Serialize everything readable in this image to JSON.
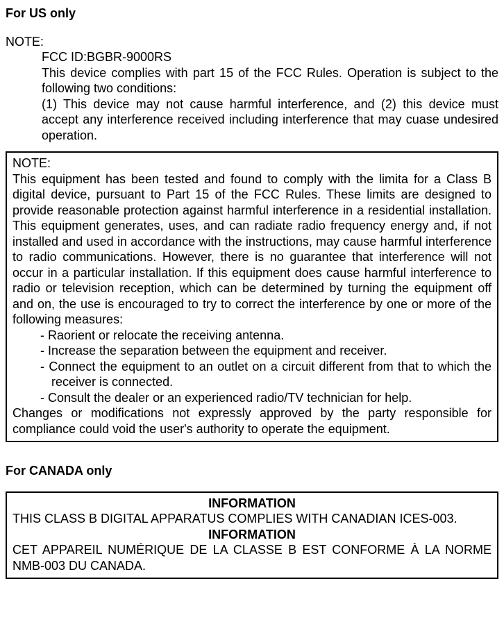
{
  "us": {
    "heading": "For US only",
    "noteLabel": "NOTE:",
    "fccId": "FCC ID:BGBR-9000RS",
    "compliesPart15": "This device complies with part 15 of the FCC Rules.  Operation is subject to the following two conditions:",
    "conditions": "(1) This device may not cause harmful interference, and (2) this device must accept any interference received including interference that may cuase undesired operation.",
    "box": {
      "noteLabel": "NOTE:",
      "para1": "This equipment has been tested and found to comply with the limita for a Class B digital device, pursuant to Part 15 of the FCC Rules. These limits are designed to provide reasonable protection against harmful interference in a residential installation. This equipment generates, uses, and can radiate radio frequency energy and, if not installed and used in accordance with the instructions, may cause harmful interference to radio communications.  However, there is no guarantee that interference will not occur in a particular installation. If this equipment does cause harmful interference to radio or television reception, which can be determined by turning the equipment off and on, the use is encouraged to try to correct the interference by one or more of the following measures:",
      "m1": "-  Raorient or relocate the receiving antenna.",
      "m2": "-  Increase the separation between the equipment and receiver.",
      "m3": "-  Connect the equipment to an outlet on a circuit different from that to which the receiver is connected.",
      "m4": "-  Consult the dealer or an experienced radio/TV technician for help.",
      "para2": "Changes or modifications not expressly approved by the party responsible for compliance could void the user's authority to operate the equipment."
    }
  },
  "canada": {
    "heading": "For CANADA only",
    "info1": "INFORMATION",
    "line1": "THIS CLASS B DIGITAL APPARATUS COMPLIES WITH CANADIAN ICES-003.",
    "info2": "INFORMATION",
    "line2": "CET APPAREIL NUMÉRIQUE DE LA CLASSE B EST CONFORME À LA NORME NMB-003 DU CANADA."
  }
}
